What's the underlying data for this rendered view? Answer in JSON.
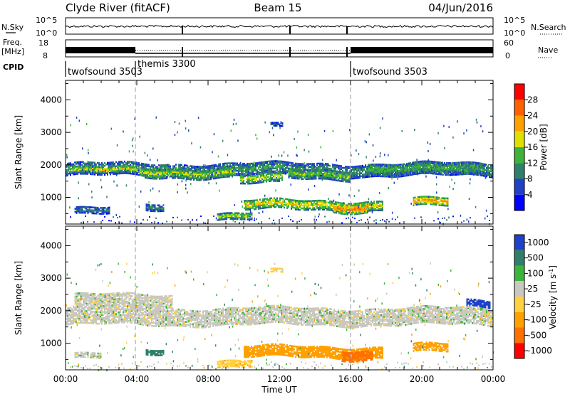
{
  "header": {
    "radar": "Clyde River (fitACF)",
    "beam": "Beam 15",
    "date": "04/Jun/2016"
  },
  "noise_panel": {
    "left_label": "N.Sky",
    "right_label": "N.Search",
    "left_ticks": [
      "10^5",
      "10^0"
    ],
    "right_ticks": [
      "10^5",
      "10^0"
    ]
  },
  "freq_panel": {
    "left_label_1": "Freq.",
    "left_label_2": "[MHz]",
    "left_ticks": [
      "18",
      "8"
    ],
    "right_label": "Nave",
    "right_ticks": [
      "60",
      "0"
    ]
  },
  "cpid": {
    "label": "CPID",
    "segments": [
      {
        "name": "twofsound 3503",
        "start_hr": 0,
        "end_hr": 4
      },
      {
        "name": "themis 3300",
        "start_hr": 4,
        "end_hr": 16
      },
      {
        "name": "twofsound 3503",
        "start_hr": 16,
        "end_hr": 24
      }
    ]
  },
  "colors": {
    "power_scale": [
      "#0000ff",
      "#2040c8",
      "#2f7f6b",
      "#3cb43c",
      "#e0e000",
      "#ffa000",
      "#ff6000",
      "#ff0000"
    ],
    "velocity_scale": [
      "#2040c8",
      "#2f7f6b",
      "#3cb43c",
      "#c8c8c0",
      "#ffd040",
      "#ffa000",
      "#ff7000",
      "#ff0000"
    ],
    "gray_scatter": "#c8c8c0"
  },
  "chart_data": [
    {
      "type": "heatmap",
      "name": "power",
      "ylabel": "Slant Range [km]",
      "xlabel": "",
      "x_ticks": [
        "00:00",
        "04:00",
        "08:00",
        "12:00",
        "16:00",
        "20:00",
        "00:00"
      ],
      "xlim_hr": [
        0,
        24
      ],
      "y_ticks": [
        "1000",
        "2000",
        "3000",
        "4000"
      ],
      "ylim": [
        180,
        4600
      ],
      "colorbar": {
        "label": "Power [dB]",
        "ticks": [
          "4",
          "8",
          "12",
          "16",
          "20",
          "24",
          "28"
        ]
      },
      "bands": [
        {
          "t0": 0.0,
          "t1": 24.0,
          "r0": 1650,
          "r1": 2050,
          "p": 12
        },
        {
          "t0": 0.2,
          "t1": 4.0,
          "r0": 1700,
          "r1": 1900,
          "p": 20
        },
        {
          "t0": 4.2,
          "t1": 9.5,
          "r0": 1600,
          "r1": 1900,
          "p": 18
        },
        {
          "t0": 9.8,
          "t1": 12.2,
          "r0": 1400,
          "r1": 1700,
          "p": 18
        },
        {
          "t0": 12.5,
          "t1": 16.0,
          "r0": 1550,
          "r1": 1850,
          "p": 16
        },
        {
          "t0": 17.0,
          "t1": 23.5,
          "r0": 1650,
          "r1": 2050,
          "p": 14
        },
        {
          "t0": 10.0,
          "t1": 17.8,
          "r0": 600,
          "r1": 900,
          "p": 20
        },
        {
          "t0": 15.0,
          "t1": 17.0,
          "r0": 550,
          "r1": 850,
          "p": 26
        },
        {
          "t0": 19.5,
          "t1": 21.5,
          "r0": 700,
          "r1": 950,
          "p": 24
        },
        {
          "t0": 0.5,
          "t1": 2.5,
          "r0": 450,
          "r1": 650,
          "p": 10
        },
        {
          "t0": 4.5,
          "t1": 5.5,
          "r0": 600,
          "r1": 800,
          "p": 12
        },
        {
          "t0": 8.5,
          "t1": 10.5,
          "r0": 300,
          "r1": 500,
          "p": 18
        },
        {
          "t0": 11.5,
          "t1": 12.2,
          "r0": 3100,
          "r1": 3200,
          "p": 8
        }
      ]
    },
    {
      "type": "heatmap",
      "name": "velocity",
      "ylabel": "Slant Range [km]",
      "xlabel": "Time UT",
      "x_ticks": [
        "00:00",
        "04:00",
        "08:00",
        "12:00",
        "16:00",
        "20:00",
        "00:00"
      ],
      "xlim_hr": [
        0,
        24
      ],
      "y_ticks": [
        "1000",
        "2000",
        "3000",
        "4000"
      ],
      "ylim": [
        180,
        4600
      ],
      "colorbar": {
        "label": "Velocity [m s",
        "label_sup": "-1",
        "label_end": "]",
        "ticks": [
          "1000",
          "500",
          "100",
          "25",
          "-25",
          "-100",
          "-500",
          "-1000"
        ]
      },
      "bands": [
        {
          "t0": 0.0,
          "t1": 24.0,
          "r0": 1550,
          "r1": 2050,
          "v": 0
        },
        {
          "t0": 0.5,
          "t1": 6.0,
          "r0": 2100,
          "r1": 2500,
          "v": 0
        },
        {
          "t0": 10.0,
          "t1": 17.8,
          "r0": 550,
          "r1": 900,
          "v": -300
        },
        {
          "t0": 15.5,
          "t1": 17.2,
          "r0": 500,
          "r1": 800,
          "v": -700
        },
        {
          "t0": 19.5,
          "t1": 21.5,
          "r0": 700,
          "r1": 950,
          "v": -200
        },
        {
          "t0": 22.5,
          "t1": 23.8,
          "r0": 2100,
          "r1": 2300,
          "v": 800
        },
        {
          "t0": 4.5,
          "t1": 5.5,
          "r0": 650,
          "r1": 800,
          "v": 200
        },
        {
          "t0": 8.5,
          "t1": 10.5,
          "r0": 250,
          "r1": 450,
          "v": -80
        },
        {
          "t0": 11.5,
          "t1": 12.2,
          "r0": 3100,
          "r1": 3200,
          "v": -50
        },
        {
          "t0": 0.5,
          "t1": 2.0,
          "r0": 500,
          "r1": 650,
          "v": 0
        }
      ]
    }
  ]
}
